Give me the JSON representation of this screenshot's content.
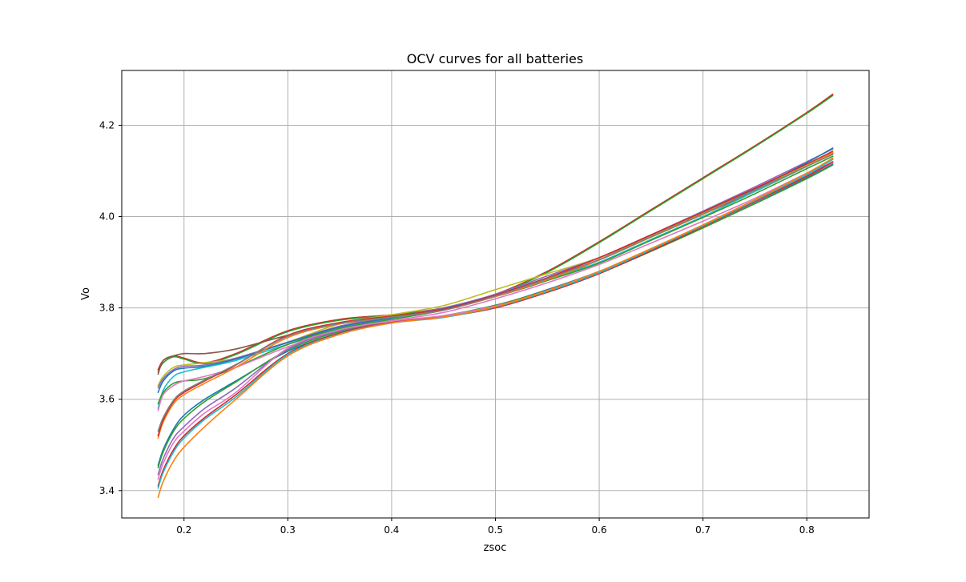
{
  "chart_data": {
    "type": "line",
    "title": "OCV curves for all batteries",
    "xlabel": "zsoc",
    "ylabel": "Vo",
    "xlim": [
      0.14,
      0.86
    ],
    "ylim": [
      3.34,
      4.32
    ],
    "xticks": [
      0.2,
      0.3,
      0.4,
      0.5,
      0.6,
      0.7,
      0.8
    ],
    "xtick_labels": [
      "0.2",
      "0.3",
      "0.4",
      "0.5",
      "0.6",
      "0.7",
      "0.8"
    ],
    "yticks": [
      3.4,
      3.6,
      3.8,
      4.0,
      4.2
    ],
    "ytick_labels": [
      "3.4",
      "3.6",
      "3.8",
      "4.0",
      "4.2"
    ],
    "grid": true,
    "legend": "none",
    "x": [
      0.175,
      0.18,
      0.19,
      0.2,
      0.22,
      0.25,
      0.3,
      0.35,
      0.4,
      0.45,
      0.5,
      0.55,
      0.6,
      0.65,
      0.7,
      0.75,
      0.8,
      0.825
    ],
    "series": [
      {
        "color": "#d62728",
        "values": [
          3.665,
          3.685,
          3.695,
          3.69,
          3.68,
          3.7,
          3.75,
          3.775,
          3.785,
          3.8,
          3.83,
          3.88,
          3.945,
          4.015,
          4.085,
          4.155,
          4.228,
          4.268
        ]
      },
      {
        "color": "#2ca02c",
        "values": [
          3.66,
          3.68,
          3.693,
          3.688,
          3.678,
          3.698,
          3.748,
          3.773,
          3.784,
          3.799,
          3.829,
          3.878,
          3.943,
          4.013,
          4.083,
          4.153,
          4.226,
          4.265
        ]
      },
      {
        "color": "#8c564b",
        "values": [
          3.655,
          3.685,
          3.695,
          3.7,
          3.7,
          3.71,
          3.74,
          3.765,
          3.78,
          3.8,
          3.825,
          3.86,
          3.905,
          3.955,
          4.005,
          4.055,
          4.11,
          4.138
        ]
      },
      {
        "color": "#bcbd22",
        "values": [
          3.63,
          3.65,
          3.67,
          3.675,
          3.68,
          3.69,
          3.725,
          3.765,
          3.785,
          3.805,
          3.84,
          3.875,
          3.91,
          3.958,
          4.008,
          4.06,
          4.112,
          4.14
        ]
      },
      {
        "color": "#9467bd",
        "values": [
          3.625,
          3.645,
          3.665,
          3.672,
          3.675,
          3.69,
          3.725,
          3.76,
          3.78,
          3.8,
          3.83,
          3.87,
          3.91,
          3.96,
          4.012,
          4.065,
          4.12,
          4.148
        ]
      },
      {
        "color": "#1f77b4",
        "values": [
          3.615,
          3.64,
          3.662,
          3.668,
          3.672,
          3.688,
          3.724,
          3.758,
          3.778,
          3.798,
          3.828,
          3.866,
          3.905,
          3.955,
          4.005,
          4.06,
          4.118,
          4.15
        ]
      },
      {
        "color": "#17becf",
        "values": [
          3.58,
          3.62,
          3.65,
          3.66,
          3.67,
          3.685,
          3.72,
          3.755,
          3.775,
          3.795,
          3.825,
          3.862,
          3.9,
          3.95,
          4.0,
          4.055,
          4.11,
          4.14
        ]
      },
      {
        "color": "#2ca02c",
        "values": [
          3.59,
          3.615,
          3.635,
          3.64,
          3.645,
          3.67,
          3.72,
          3.755,
          3.775,
          3.795,
          3.825,
          3.86,
          3.898,
          3.948,
          3.998,
          4.05,
          4.105,
          4.132
        ]
      },
      {
        "color": "#e377c2",
        "values": [
          3.575,
          3.61,
          3.63,
          3.64,
          3.65,
          3.67,
          3.715,
          3.75,
          3.772,
          3.79,
          3.82,
          3.855,
          3.895,
          3.942,
          3.99,
          4.04,
          4.095,
          4.118
        ]
      },
      {
        "color": "#ff7f0e",
        "values": [
          3.515,
          3.55,
          3.59,
          3.61,
          3.635,
          3.67,
          3.735,
          3.765,
          3.78,
          3.795,
          3.825,
          3.862,
          3.905,
          3.955,
          4.005,
          4.058,
          4.11,
          4.14
        ]
      },
      {
        "color": "#d62728",
        "values": [
          3.52,
          3.555,
          3.595,
          3.615,
          3.64,
          3.675,
          3.74,
          3.768,
          3.782,
          3.797,
          3.828,
          3.866,
          3.91,
          3.96,
          4.01,
          4.062,
          4.115,
          4.143
        ]
      },
      {
        "color": "#7f7f7f",
        "values": [
          3.53,
          3.56,
          3.598,
          3.618,
          3.642,
          3.676,
          3.738,
          3.766,
          3.78,
          3.795,
          3.826,
          3.864,
          3.906,
          3.956,
          4.006,
          4.058,
          4.11,
          4.136
        ]
      },
      {
        "color": "#1f77b4",
        "values": [
          3.455,
          3.49,
          3.535,
          3.565,
          3.6,
          3.64,
          3.705,
          3.745,
          3.768,
          3.782,
          3.805,
          3.84,
          3.88,
          3.928,
          3.978,
          4.03,
          4.085,
          4.115
        ]
      },
      {
        "color": "#2ca02c",
        "values": [
          3.45,
          3.485,
          3.53,
          3.558,
          3.595,
          3.638,
          3.708,
          3.748,
          3.769,
          3.783,
          3.806,
          3.838,
          3.876,
          3.924,
          3.975,
          4.028,
          4.083,
          4.113
        ]
      },
      {
        "color": "#9467bd",
        "values": [
          3.435,
          3.47,
          3.515,
          3.54,
          3.58,
          3.625,
          3.71,
          3.75,
          3.77,
          3.782,
          3.805,
          3.836,
          3.878,
          3.928,
          3.98,
          4.035,
          4.09,
          4.12
        ]
      },
      {
        "color": "#e377c2",
        "values": [
          3.425,
          3.46,
          3.505,
          3.53,
          3.57,
          3.615,
          3.712,
          3.752,
          3.771,
          3.783,
          3.804,
          3.835,
          3.876,
          3.926,
          3.978,
          4.032,
          4.088,
          4.118
        ]
      },
      {
        "color": "#d62728",
        "values": [
          3.41,
          3.445,
          3.49,
          3.52,
          3.56,
          3.61,
          3.7,
          3.745,
          3.768,
          3.78,
          3.8,
          3.834,
          3.875,
          3.925,
          3.978,
          4.033,
          4.088,
          4.12
        ]
      },
      {
        "color": "#17becf",
        "values": [
          3.405,
          3.44,
          3.485,
          3.515,
          3.556,
          3.605,
          3.698,
          3.743,
          3.767,
          3.779,
          3.802,
          3.836,
          3.877,
          3.928,
          3.98,
          4.035,
          4.092,
          4.125
        ]
      },
      {
        "color": "#ff7f0e",
        "values": [
          3.385,
          3.42,
          3.465,
          3.495,
          3.54,
          3.6,
          3.695,
          3.742,
          3.767,
          3.78,
          3.803,
          3.838,
          3.88,
          3.93,
          3.982,
          4.037,
          4.095,
          4.128
        ]
      }
    ]
  }
}
